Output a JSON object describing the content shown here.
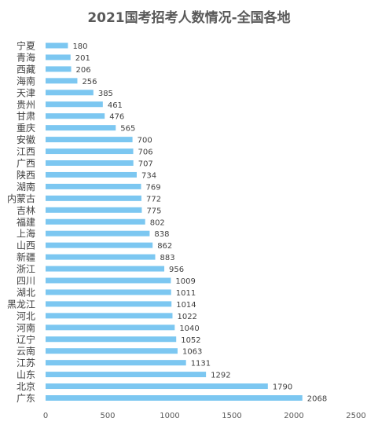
{
  "chart_data": {
    "type": "bar",
    "orientation": "horizontal",
    "title": "2021国考招考人数情况-全国各地",
    "xlabel": "",
    "ylabel": "",
    "xlim": [
      0,
      2500
    ],
    "x_ticks": [
      "0",
      "500",
      "1000",
      "1500",
      "2000",
      "2500"
    ],
    "grid": false,
    "legend": "none",
    "bar_color": "#7CC7F1",
    "categories": [
      "宁夏",
      "青海",
      "西藏",
      "海南",
      "天津",
      "贵州",
      "甘肃",
      "重庆",
      "安徽",
      "江西",
      "广西",
      "陕西",
      "湖南",
      "内蒙古",
      "吉林",
      "福建",
      "上海",
      "山西",
      "新疆",
      "浙江",
      "四川",
      "湖北",
      "黑龙江",
      "河北",
      "河南",
      "辽宁",
      "云南",
      "江苏",
      "山东",
      "北京",
      "广东"
    ],
    "values": [
      180,
      201,
      206,
      256,
      385,
      461,
      476,
      565,
      700,
      706,
      707,
      734,
      769,
      772,
      775,
      802,
      838,
      862,
      883,
      956,
      1009,
      1011,
      1014,
      1022,
      1040,
      1052,
      1063,
      1131,
      1292,
      1790,
      2068
    ],
    "data_labels": [
      "180",
      "201",
      "206",
      "256",
      "385",
      "461",
      "476",
      "565",
      "700",
      "706",
      "707",
      "734",
      "769",
      "772",
      "775",
      "802",
      "838",
      "862",
      "883",
      "956",
      "1009",
      "1011",
      "1014",
      "1022",
      "1040",
      "1052",
      "1063",
      "1131",
      "1292",
      "1790",
      "2068"
    ]
  }
}
